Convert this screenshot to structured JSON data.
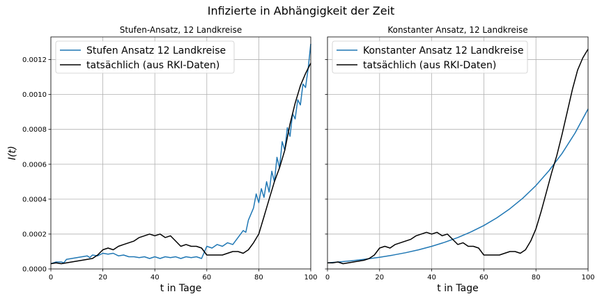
{
  "figure": {
    "suptitle": "Infizierte in Abhängigkeit der Zeit"
  },
  "chart_data": [
    {
      "type": "line",
      "title": "Stufen-Ansatz, 12 Landkreise",
      "xlabel": "t in Tage",
      "ylabel": "I(t)",
      "xlim": [
        0,
        100
      ],
      "ylim": [
        0,
        0.00133
      ],
      "xticks": [
        0,
        20,
        40,
        60,
        80,
        100
      ],
      "xtick_labels": [
        "0",
        "20",
        "40",
        "60",
        "80",
        "100"
      ],
      "yticks": [
        0,
        0.0002,
        0.0004,
        0.0006,
        0.0008,
        0.001,
        0.0012
      ],
      "ytick_labels": [
        "0.0000",
        "0.0002",
        "0.0004",
        "0.0006",
        "0.0008",
        "0.0010",
        "0.0012"
      ],
      "grid": true,
      "legend": "top-left",
      "series": [
        {
          "name": "Stufen Ansatz 12 Landkreise",
          "color": "#1f77b4",
          "x": [
            0,
            2,
            4,
            5,
            6,
            8,
            10,
            12,
            14,
            15,
            16,
            18,
            20,
            22,
            24,
            26,
            28,
            30,
            32,
            34,
            36,
            38,
            40,
            42,
            44,
            46,
            48,
            50,
            52,
            54,
            56,
            58,
            60,
            62,
            64,
            66,
            68,
            70,
            72,
            74,
            75,
            76,
            78,
            79,
            80,
            81,
            82,
            83,
            84,
            85,
            86,
            87,
            88,
            89,
            90,
            91,
            92,
            93,
            94,
            95,
            96,
            97,
            98,
            99,
            100
          ],
          "y": [
            3e-05,
            4e-05,
            4e-05,
            3.5e-05,
            5.5e-05,
            6e-05,
            6.5e-05,
            7e-05,
            7.5e-05,
            6.5e-05,
            8e-05,
            7.5e-05,
            9e-05,
            8.5e-05,
            9e-05,
            7.5e-05,
            8e-05,
            7e-05,
            7e-05,
            6.5e-05,
            7e-05,
            6e-05,
            7e-05,
            6e-05,
            7e-05,
            6.5e-05,
            7e-05,
            6e-05,
            7e-05,
            6.5e-05,
            7e-05,
            6e-05,
            0.00013,
            0.00012,
            0.00014,
            0.00013,
            0.00015,
            0.00014,
            0.00018,
            0.00022,
            0.00021,
            0.00028,
            0.00035,
            0.00043,
            0.00038,
            0.00046,
            0.00041,
            0.0005,
            0.00044,
            0.00056,
            0.0005,
            0.00064,
            0.00058,
            0.00073,
            0.00068,
            0.00081,
            0.00076,
            0.00089,
            0.00086,
            0.00097,
            0.00094,
            0.00106,
            0.00104,
            0.00115,
            0.00129
          ]
        },
        {
          "name": "tatsächlich (aus RKI-Daten)",
          "color": "#000000",
          "x": [
            0,
            2,
            4,
            6,
            8,
            10,
            12,
            14,
            16,
            18,
            20,
            22,
            24,
            26,
            28,
            30,
            32,
            34,
            36,
            38,
            40,
            42,
            44,
            46,
            48,
            50,
            52,
            54,
            56,
            58,
            60,
            62,
            64,
            66,
            68,
            70,
            72,
            74,
            76,
            78,
            80,
            82,
            84,
            86,
            88,
            90,
            92,
            94,
            96,
            98,
            100
          ],
          "y": [
            3e-05,
            3.5e-05,
            3e-05,
            3.5e-05,
            4e-05,
            4.5e-05,
            5e-05,
            5.5e-05,
            6e-05,
            8e-05,
            0.00011,
            0.00012,
            0.00011,
            0.00013,
            0.00014,
            0.00015,
            0.00016,
            0.00018,
            0.00019,
            0.0002,
            0.00019,
            0.0002,
            0.00018,
            0.00019,
            0.00016,
            0.00013,
            0.00014,
            0.00013,
            0.00013,
            0.00012,
            8e-05,
            8e-05,
            8e-05,
            8e-05,
            9e-05,
            0.0001,
            0.0001,
            9e-05,
            0.00011,
            0.00015,
            0.0002,
            0.0003,
            0.0004,
            0.0005,
            0.00058,
            0.00068,
            0.00083,
            0.00095,
            0.00105,
            0.00112,
            0.00118
          ]
        }
      ]
    },
    {
      "type": "line",
      "title": "Konstanter Ansatz, 12 Landkreise",
      "xlabel": "t in Tage",
      "ylabel": "",
      "xlim": [
        0,
        100
      ],
      "ylim": [
        0,
        0.00133
      ],
      "xticks": [
        0,
        20,
        40,
        60,
        80,
        100
      ],
      "xtick_labels": [
        "0",
        "20",
        "40",
        "60",
        "80",
        "100"
      ],
      "yticks": [
        0,
        0.0002,
        0.0004,
        0.0006,
        0.0008,
        0.001,
        0.0012
      ],
      "ytick_labels": [
        "",
        "",
        "",
        "",
        "",
        "",
        ""
      ],
      "grid": true,
      "legend": "top-left",
      "series": [
        {
          "name": "Konstanter Ansatz 12 Landkreise",
          "color": "#1f77b4",
          "x": [
            0,
            5,
            10,
            15,
            20,
            25,
            30,
            35,
            40,
            45,
            50,
            55,
            60,
            65,
            70,
            75,
            80,
            85,
            90,
            95,
            100
          ],
          "y": [
            3.5e-05,
            4.1e-05,
            4.8e-05,
            5.7e-05,
            6.7e-05,
            7.9e-05,
            9.3e-05,
            0.00011,
            0.00013,
            0.000153,
            0.00018,
            0.000212,
            0.000249,
            0.000293,
            0.000345,
            0.000406,
            0.000478,
            0.000563,
            0.000662,
            0.000779,
            0.000917
          ]
        },
        {
          "name": "tatsächlich (aus RKI-Daten)",
          "color": "#000000",
          "x": [
            0,
            2,
            4,
            6,
            8,
            10,
            12,
            14,
            16,
            18,
            20,
            22,
            24,
            26,
            28,
            30,
            32,
            34,
            36,
            38,
            40,
            42,
            44,
            46,
            48,
            50,
            52,
            54,
            56,
            58,
            60,
            62,
            64,
            66,
            68,
            70,
            72,
            74,
            76,
            78,
            80,
            82,
            84,
            86,
            88,
            90,
            92,
            94,
            96,
            98,
            100
          ],
          "y": [
            3.5e-05,
            3.5e-05,
            4e-05,
            3e-05,
            3.5e-05,
            4e-05,
            4.5e-05,
            5e-05,
            6e-05,
            8e-05,
            0.00012,
            0.00013,
            0.00012,
            0.00014,
            0.00015,
            0.00016,
            0.00017,
            0.00019,
            0.0002,
            0.00021,
            0.0002,
            0.00021,
            0.00019,
            0.0002,
            0.00017,
            0.00014,
            0.00015,
            0.00013,
            0.00013,
            0.00012,
            8e-05,
            8e-05,
            8e-05,
            8e-05,
            9e-05,
            0.0001,
            0.0001,
            9e-05,
            0.00011,
            0.00016,
            0.00023,
            0.00033,
            0.00044,
            0.00055,
            0.00065,
            0.00077,
            0.0009,
            0.00103,
            0.00114,
            0.00121,
            0.00126
          ]
        }
      ]
    }
  ]
}
